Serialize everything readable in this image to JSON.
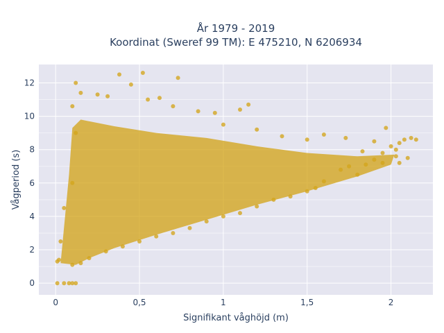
{
  "chart_data": {
    "type": "scatter",
    "title_line1": "År 1979 - 2019",
    "title_line2": "Koordinat (Sweref 99 TM): E 475210, N 6206934",
    "xlabel": "Signifikant våghöjd (m)",
    "ylabel": "Vågperiod (s)",
    "xlim": [
      -0.1,
      2.25
    ],
    "ylim": [
      -0.7,
      13.1
    ],
    "xticks": [
      0,
      0.5,
      1,
      1.5,
      2
    ],
    "xtick_labels": [
      "0",
      "0,5",
      "1",
      "1,5",
      "2"
    ],
    "yticks": [
      0,
      2,
      4,
      6,
      8,
      10,
      12
    ],
    "ytick_labels": [
      "0",
      "2",
      "4",
      "6",
      "8",
      "10",
      "12"
    ],
    "grid": true,
    "marker_color": "#d4a51c",
    "plot_background": "#e5e5f0",
    "points": [
      [
        0.01,
        0.0
      ],
      [
        0.05,
        0.0
      ],
      [
        0.08,
        0.0
      ],
      [
        0.1,
        0.0
      ],
      [
        0.12,
        0.0
      ],
      [
        0.01,
        1.3
      ],
      [
        0.02,
        1.4
      ],
      [
        0.03,
        2.5
      ],
      [
        0.05,
        4.5
      ],
      [
        0.1,
        6.0
      ],
      [
        0.12,
        9.0
      ],
      [
        0.1,
        10.6
      ],
      [
        0.15,
        11.4
      ],
      [
        0.12,
        12.0
      ],
      [
        0.25,
        11.3
      ],
      [
        0.31,
        11.2
      ],
      [
        0.38,
        12.5
      ],
      [
        0.45,
        11.9
      ],
      [
        0.52,
        12.6
      ],
      [
        0.55,
        11.0
      ],
      [
        0.62,
        11.1
      ],
      [
        0.73,
        12.3
      ],
      [
        0.7,
        10.6
      ],
      [
        0.85,
        10.3
      ],
      [
        0.95,
        10.2
      ],
      [
        1.1,
        10.4
      ],
      [
        1.15,
        10.7
      ],
      [
        1.0,
        9.5
      ],
      [
        1.2,
        9.2
      ],
      [
        1.35,
        8.8
      ],
      [
        1.5,
        8.6
      ],
      [
        1.6,
        8.9
      ],
      [
        1.73,
        8.7
      ],
      [
        1.83,
        7.9
      ],
      [
        1.9,
        8.5
      ],
      [
        1.95,
        7.8
      ],
      [
        1.97,
        9.3
      ],
      [
        2.0,
        8.2
      ],
      [
        2.03,
        8.0
      ],
      [
        2.05,
        8.4
      ],
      [
        2.08,
        8.6
      ],
      [
        2.12,
        8.7
      ],
      [
        2.15,
        8.6
      ],
      [
        2.1,
        7.5
      ],
      [
        2.05,
        7.2
      ],
      [
        2.03,
        7.6
      ],
      [
        1.95,
        7.2
      ],
      [
        1.9,
        7.4
      ],
      [
        1.85,
        7.1
      ],
      [
        1.8,
        6.5
      ],
      [
        1.75,
        7.0
      ],
      [
        1.7,
        6.8
      ],
      [
        1.6,
        6.1
      ],
      [
        1.55,
        5.7
      ],
      [
        1.5,
        5.5
      ],
      [
        1.4,
        5.2
      ],
      [
        1.3,
        5.0
      ],
      [
        1.2,
        4.6
      ],
      [
        1.1,
        4.2
      ],
      [
        1.0,
        4.0
      ],
      [
        0.9,
        3.7
      ],
      [
        0.8,
        3.3
      ],
      [
        0.7,
        3.0
      ],
      [
        0.6,
        2.8
      ],
      [
        0.5,
        2.5
      ],
      [
        0.4,
        2.2
      ],
      [
        0.3,
        1.9
      ],
      [
        0.2,
        1.5
      ],
      [
        0.15,
        1.2
      ],
      [
        0.1,
        1.1
      ]
    ]
  }
}
